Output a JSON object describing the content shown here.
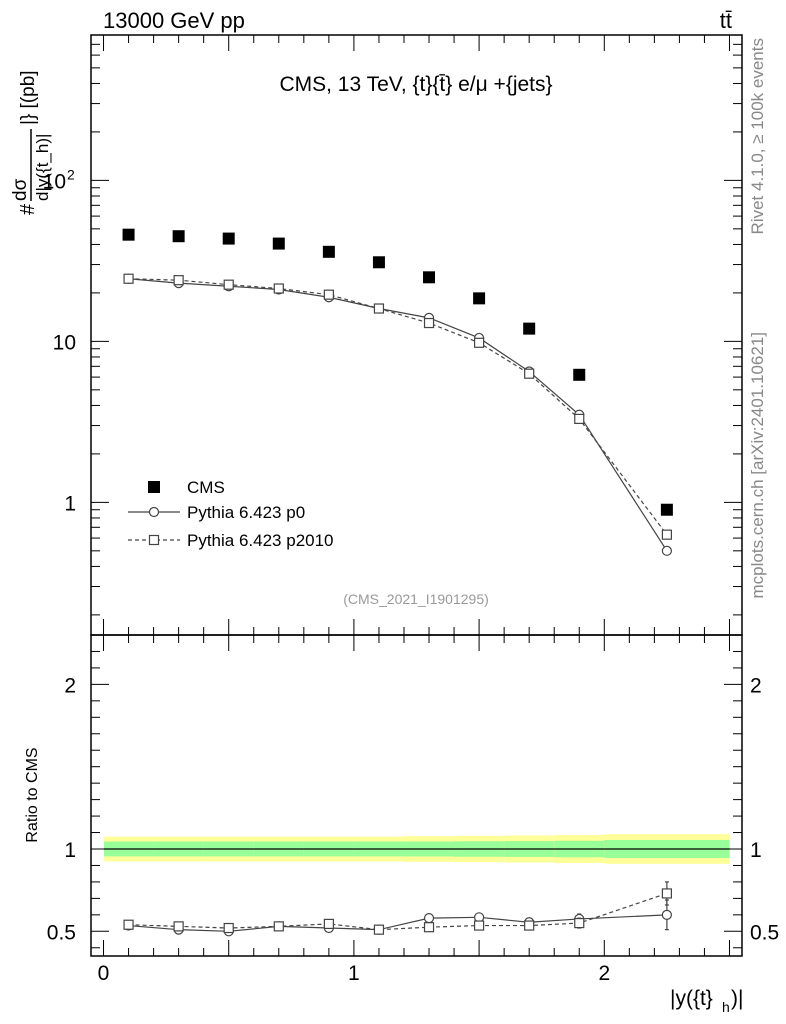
{
  "header": {
    "left": "13000 GeV pp",
    "right": "tt̄"
  },
  "side_labels": {
    "rivet": "Rivet 4.1.0, ≥ 100k events",
    "mcplots": "mcplots.cern.ch [arXiv:2401.10621]"
  },
  "chart_data": [
    {
      "type": "scatter",
      "panel": "main",
      "title": "CMS, 13 TeV, {t}{t̄} e/μ +{jets}",
      "analysis_tag": "(CMS_2021_I1901295)",
      "ylabel_numerator": "dσ",
      "ylabel_denominator": "d|y({t_h)|",
      "ylabel_prefix": "#",
      "ylabel_suffix": "|} [(pb]",
      "yscale": "log",
      "ylim": [
        0.15,
        800
      ],
      "xlim": [
        -0.05,
        2.55
      ],
      "yticks": [
        {
          "v": 1,
          "label": "1"
        },
        {
          "v": 10,
          "label": "10"
        },
        {
          "v": 100,
          "label": "10",
          "sup": "2"
        }
      ],
      "x": [
        0.1,
        0.3,
        0.5,
        0.7,
        0.9,
        1.1,
        1.3,
        1.5,
        1.7,
        1.9,
        2.25
      ],
      "series": [
        {
          "name": "CMS",
          "style": "data",
          "values": [
            46,
            45,
            43.5,
            40.5,
            36,
            31,
            25,
            18.5,
            12,
            6.2,
            0.9
          ]
        },
        {
          "name": "Pythia 6.423 p0",
          "style": "solid-circle",
          "values": [
            24.5,
            23,
            22,
            21,
            18.8,
            16,
            14,
            10.5,
            6.5,
            3.5,
            0.5
          ]
        },
        {
          "name": "Pythia 6.423 p2010",
          "style": "dashed-square",
          "values": [
            24.5,
            24,
            22.5,
            21.3,
            19.5,
            16,
            13,
            9.8,
            6.3,
            3.3,
            0.63
          ]
        }
      ]
    },
    {
      "type": "scatter",
      "panel": "ratio",
      "ylabel": "Ratio to CMS",
      "xlabel": "|y({t}",
      "xlabel_sub": "h",
      "xlabel_end": ")|",
      "ylim": [
        0.35,
        2.3
      ],
      "xlim": [
        -0.05,
        2.55
      ],
      "xticks": [
        {
          "v": 0,
          "label": "0"
        },
        {
          "v": 1,
          "label": "1"
        },
        {
          "v": 2,
          "label": "2"
        }
      ],
      "yticks": [
        {
          "v": 0.5,
          "label": "0.5"
        },
        {
          "v": 1,
          "label": "1"
        },
        {
          "v": 2,
          "label": "2"
        }
      ],
      "x": [
        0.1,
        0.3,
        0.5,
        0.7,
        0.9,
        1.1,
        1.3,
        1.5,
        1.7,
        1.9,
        2.25
      ],
      "band_bins": [
        0,
        0.2,
        0.4,
        0.6,
        0.8,
        1.0,
        1.2,
        1.4,
        1.6,
        1.8,
        2.0,
        2.5
      ],
      "band_green": [
        0.045,
        0.045,
        0.045,
        0.045,
        0.045,
        0.045,
        0.045,
        0.047,
        0.048,
        0.05,
        0.055
      ],
      "band_yellow": [
        0.075,
        0.075,
        0.075,
        0.075,
        0.075,
        0.075,
        0.078,
        0.08,
        0.082,
        0.085,
        0.09
      ],
      "series": [
        {
          "name": "Pythia 6.423 p0",
          "style": "solid-circle",
          "values": [
            0.535,
            0.51,
            0.5,
            0.53,
            0.52,
            0.51,
            0.58,
            0.585,
            0.555,
            0.575,
            0.6
          ],
          "errors": [
            0.01,
            0.01,
            0.01,
            0.012,
            0.012,
            0.013,
            0.02,
            0.02,
            0.025,
            0.03,
            0.09
          ]
        },
        {
          "name": "Pythia 6.423 p2010",
          "style": "dashed-square",
          "values": [
            0.54,
            0.53,
            0.52,
            0.53,
            0.545,
            0.51,
            0.525,
            0.535,
            0.535,
            0.55,
            0.73
          ],
          "errors": [
            0.01,
            0.01,
            0.01,
            0.012,
            0.012,
            0.013,
            0.02,
            0.02,
            0.025,
            0.03,
            0.07
          ]
        }
      ]
    }
  ]
}
